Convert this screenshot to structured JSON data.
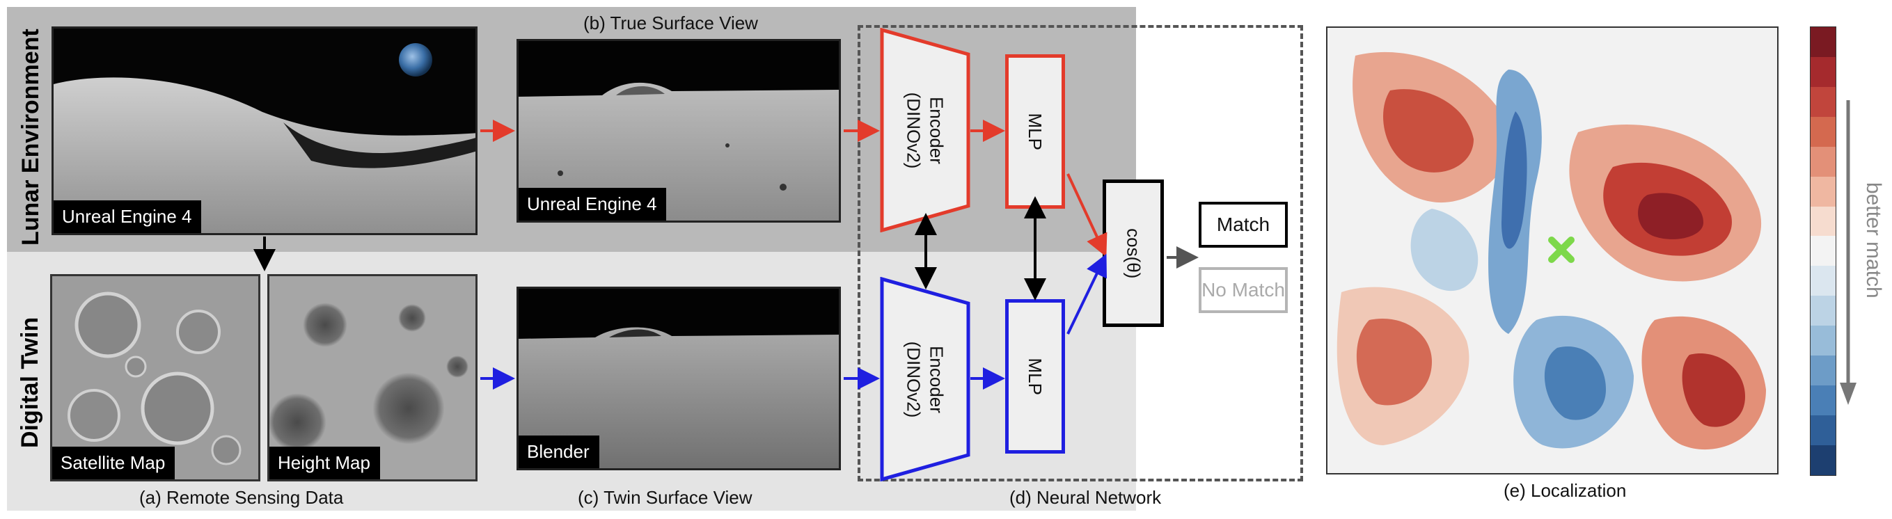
{
  "bands": {
    "lunar_label": "Lunar Environment",
    "twin_label": "Digital Twin"
  },
  "images": {
    "lunar_render": {
      "tag": "Unreal Engine 4"
    },
    "true_surface": {
      "tag": "Unreal Engine 4"
    },
    "satellite_map": {
      "tag": "Satellite Map"
    },
    "height_map": {
      "tag": "Height Map"
    },
    "twin_surface": {
      "tag": "Blender"
    }
  },
  "captions": {
    "a": "(a) Remote Sensing Data",
    "b": "(b) True Surface View",
    "c": "(c) Twin Surface View",
    "d": "(d) Neural Network",
    "e": "(e) Localization"
  },
  "network": {
    "encoder_top": "Encoder\n(DINOv2)",
    "encoder_bottom": "Encoder\n(DINOv2)",
    "mlp_top": "MLP",
    "mlp_bottom": "MLP",
    "similarity": "cos(θ)",
    "match": "Match",
    "no_match": "No Match"
  },
  "colorbar": {
    "label": "better match",
    "colors": [
      "#7a1a22",
      "#a52a2d",
      "#c1453c",
      "#d4694f",
      "#e39078",
      "#efb7a1",
      "#f6dccf",
      "#f3f3f3",
      "#dbe6ef",
      "#bcd3e5",
      "#98bcd9",
      "#6d9cc7",
      "#4a7fb6",
      "#2f5f98",
      "#1d3f70"
    ]
  },
  "colors": {
    "top_branch": "#e33b2b",
    "bottom_branch": "#1f1fe0",
    "neutral_arrow": "#555555",
    "marker": "#7dd84a"
  },
  "icons": {
    "marker": "x-mark-icon"
  }
}
